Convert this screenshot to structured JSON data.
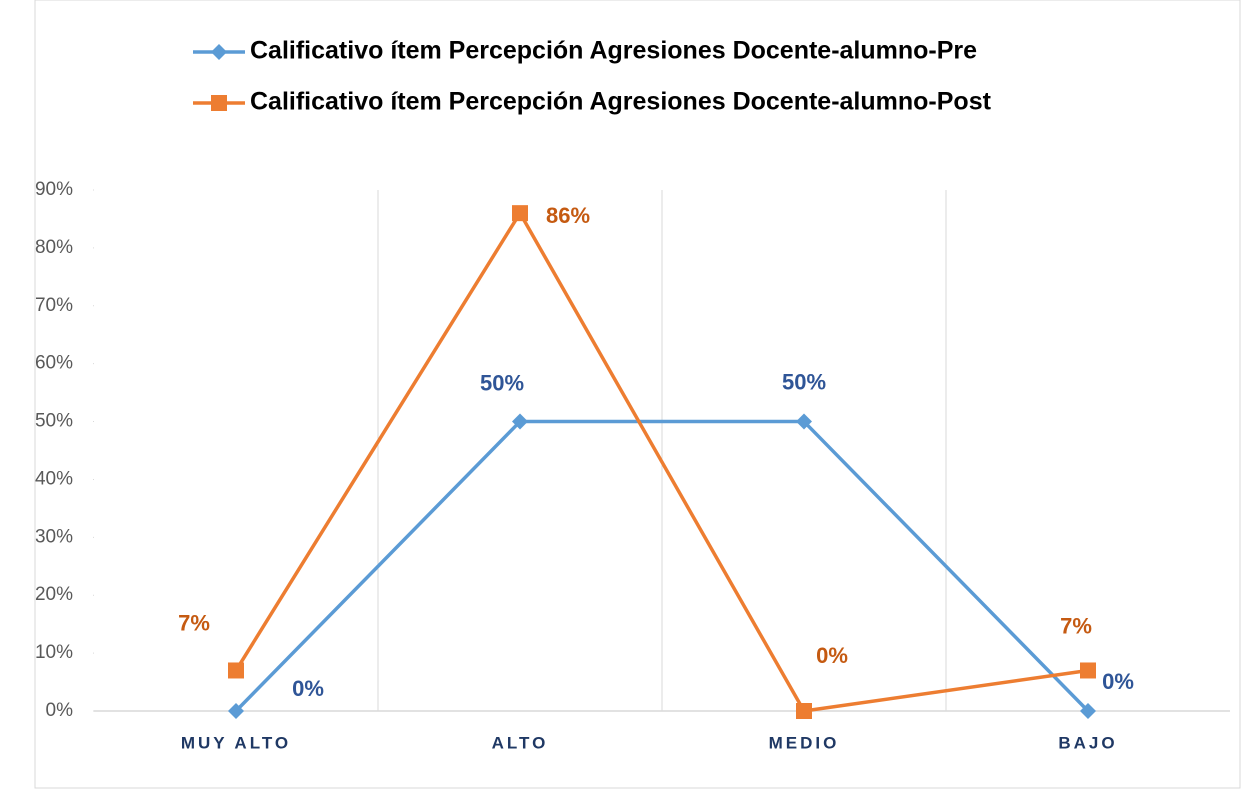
{
  "chart_data": {
    "type": "line",
    "categories": [
      "MUY ALTO",
      "ALTO",
      "MEDIO",
      "BAJO"
    ],
    "series": [
      {
        "name": "Calificativo ítem Percepción Agresiones Docente-alumno-Pre",
        "color": "#5b9bd5",
        "label_color": "#2f5597",
        "marker": "diamond",
        "values": [
          0,
          50,
          50,
          0
        ],
        "value_labels": [
          "0%",
          "50%",
          "50%",
          "0%"
        ]
      },
      {
        "name": "Calificativo ítem Percepción Agresiones Docente-alumno-Post",
        "color": "#ed7d31",
        "label_color": "#c55a11",
        "marker": "square",
        "values": [
          7,
          86,
          0,
          7
        ],
        "value_labels": [
          "7%",
          "86%",
          "0%",
          "7%"
        ]
      }
    ],
    "ylim": [
      0,
      90
    ],
    "yticks": [
      {
        "value": 0,
        "label": "0%"
      },
      {
        "value": 10,
        "label": "10%"
      },
      {
        "value": 20,
        "label": "20%"
      },
      {
        "value": 30,
        "label": "30%"
      },
      {
        "value": 40,
        "label": "40%"
      },
      {
        "value": 50,
        "label": "50%"
      },
      {
        "value": 60,
        "label": "60%"
      },
      {
        "value": 70,
        "label": "70%"
      },
      {
        "value": 80,
        "label": "80%"
      },
      {
        "value": 90,
        "label": "90%"
      }
    ],
    "legend": "top"
  }
}
